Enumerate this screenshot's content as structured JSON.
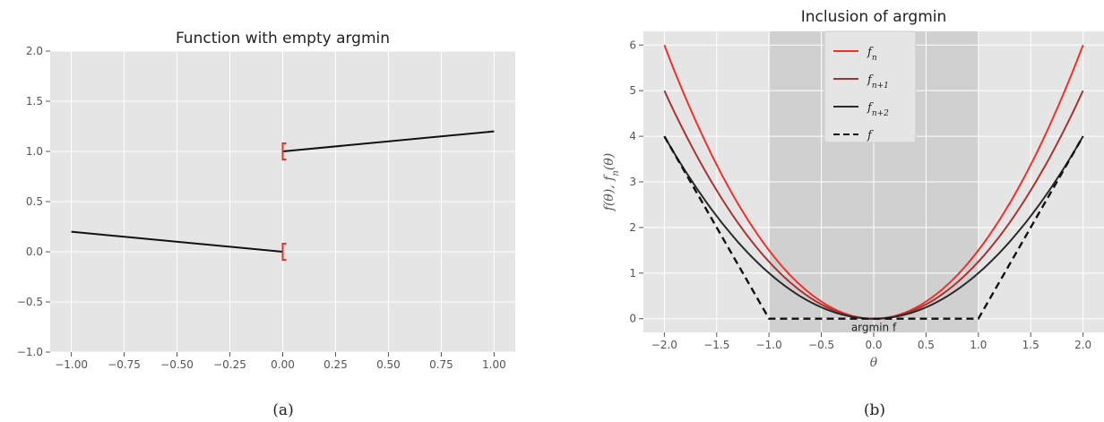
{
  "chart_data": [
    {
      "type": "line",
      "title": "Function with empty argmin",
      "caption": "(a)",
      "xlim": [
        -1.1,
        1.1
      ],
      "ylim": [
        -1.0,
        2.0
      ],
      "xticks": [
        -1.0,
        -0.75,
        -0.5,
        -0.25,
        0.0,
        0.25,
        0.5,
        0.75,
        1.0
      ],
      "xtick_labels": [
        "−1.00",
        "−0.75",
        "−0.50",
        "−0.25",
        "0.00",
        "0.25",
        "0.50",
        "0.75",
        "1.00"
      ],
      "yticks": [
        -1.0,
        -0.5,
        0.0,
        0.5,
        1.0,
        1.5,
        2.0
      ],
      "ytick_labels": [
        "−1.0",
        "−0.5",
        "0.0",
        "0.5",
        "1.0",
        "1.5",
        "2.0"
      ],
      "grid": true,
      "series": [
        {
          "x": [
            -1.0,
            0.0
          ],
          "y": [
            0.2,
            0.0
          ],
          "color": "#111111"
        },
        {
          "x": [
            0.0,
            1.0
          ],
          "y": [
            1.0,
            1.2
          ],
          "color": "#111111"
        }
      ],
      "markers": [
        {
          "x": 0.0,
          "y": 0.0,
          "label": "[",
          "color": "#e8332a"
        },
        {
          "x": 0.0,
          "y": 1.0,
          "label": "[",
          "color": "#e8332a"
        }
      ]
    },
    {
      "type": "line",
      "title": "Inclusion of argmin",
      "caption": "(b)",
      "xlabel": "θ",
      "ylabel": "f(θ), f_n(θ)",
      "xlim": [
        -2.2,
        2.2
      ],
      "ylim": [
        -0.3,
        6.3
      ],
      "xticks": [
        -2.0,
        -1.5,
        -1.0,
        -0.5,
        0.0,
        0.5,
        1.0,
        1.5,
        2.0
      ],
      "xtick_labels": [
        "−2.0",
        "−1.5",
        "−1.0",
        "−0.5",
        "0.0",
        "0.5",
        "1.0",
        "1.5",
        "2.0"
      ],
      "yticks": [
        0,
        1,
        2,
        3,
        4,
        5,
        6
      ],
      "ytick_labels": [
        "0",
        "1",
        "2",
        "3",
        "4",
        "5",
        "6"
      ],
      "grid": true,
      "shaded_region": {
        "x": [
          -1.0,
          1.0
        ],
        "label": "argmin f",
        "color": "#d0d0d0"
      },
      "legend_position": "top-center",
      "series": [
        {
          "name": "f_n",
          "display": {
            "base": "f",
            "sub": "n"
          },
          "color": "#f0302a",
          "dashed": false,
          "x": [
            -2.0,
            -1.5,
            -1.0,
            -0.5,
            0.0,
            0.5,
            1.0,
            1.5,
            2.0
          ],
          "y": [
            6.0,
            3.375,
            1.5,
            0.375,
            0.0,
            0.375,
            1.5,
            3.375,
            6.0
          ]
        },
        {
          "name": "f_{n+1}",
          "display": {
            "base": "f",
            "sub": "n+1"
          },
          "color": "#a83232",
          "dashed": false,
          "x": [
            -2.0,
            -1.5,
            -1.0,
            -0.5,
            0.0,
            0.5,
            1.0,
            1.5,
            2.0
          ],
          "y": [
            5.0,
            2.8125,
            1.25,
            0.3125,
            0.0,
            0.3125,
            1.25,
            2.8125,
            5.0
          ]
        },
        {
          "name": "f_{n+2}",
          "display": {
            "base": "f",
            "sub": "n+2"
          },
          "color": "#2a2a2a",
          "dashed": false,
          "x": [
            -2.0,
            -1.5,
            -1.0,
            -0.5,
            0.0,
            0.5,
            1.0,
            1.5,
            2.0
          ],
          "y": [
            4.0,
            2.25,
            1.0,
            0.25,
            0.0,
            0.25,
            1.0,
            2.25,
            4.0
          ]
        },
        {
          "name": "f",
          "display": {
            "base": "f",
            "sub": ""
          },
          "color": "#111111",
          "dashed": true,
          "x": [
            -2.0,
            -1.0,
            1.0,
            2.0
          ],
          "y": [
            4.0,
            0.0,
            0.0,
            4.0
          ]
        }
      ]
    }
  ]
}
